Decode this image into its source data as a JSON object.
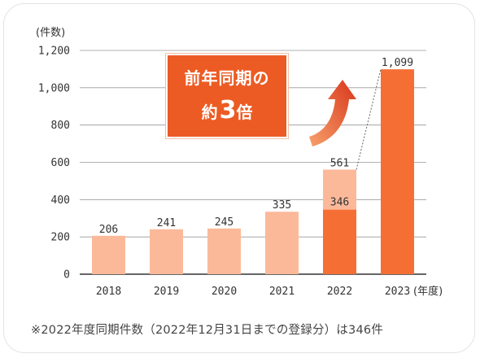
{
  "chart_data": {
    "type": "bar",
    "categories": [
      "2018",
      "2019",
      "2020",
      "2021",
      "2022",
      "2023"
    ],
    "values": [
      206,
      241,
      245,
      335,
      561,
      1099
    ],
    "value_labels": [
      "206",
      "241",
      "245",
      "335",
      "561",
      "1,099"
    ],
    "highlight_2022": {
      "value": 346,
      "label": "346"
    },
    "ylim": [
      0,
      1200
    ],
    "yticks": [
      0,
      200,
      400,
      600,
      800,
      1000,
      1200
    ],
    "ytick_labels": [
      "0",
      "200",
      "400",
      "600",
      "800",
      "1,000",
      "1,200"
    ],
    "ylabel": "(件数)",
    "xlabel": "(年度)",
    "grid": true,
    "colors": {
      "light": "#fcb99a",
      "dark": "#f56f35",
      "grid": "#999999",
      "axis": "#333333"
    }
  },
  "callout": {
    "line1": "前年同期の",
    "line2_prefix": "約",
    "line2_big": "3",
    "line2_suffix": "倍"
  },
  "note": "※2022年度同期件数（2022年12月31日までの登録分）は346件"
}
